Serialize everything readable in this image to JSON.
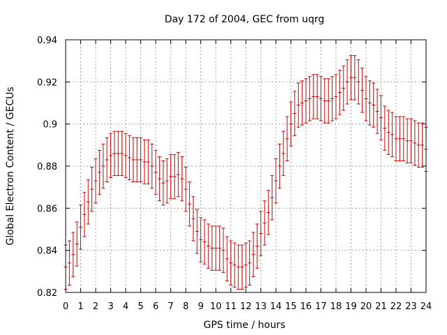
{
  "chart_data": {
    "type": "errorbar",
    "title": "Day 172 of 2004, GEC from uqrg",
    "xlabel": "GPS time / hours",
    "ylabel": "Global Electron Content / GECUs",
    "xlim": [
      0,
      24
    ],
    "ylim": [
      0.82,
      0.94
    ],
    "x_ticks": [
      0,
      1,
      2,
      3,
      4,
      5,
      6,
      7,
      8,
      9,
      10,
      11,
      12,
      13,
      14,
      15,
      16,
      17,
      18,
      19,
      20,
      21,
      22,
      23,
      24
    ],
    "y_ticks": [
      0.82,
      0.84,
      0.86,
      0.88,
      0.9,
      0.92,
      0.94
    ],
    "x_tick_labels": [
      "0",
      "1",
      "2",
      "3",
      "4",
      "5",
      "6",
      "7",
      "8",
      "9",
      "10",
      "11",
      "12",
      "13",
      "14",
      "15",
      "16",
      "17",
      "18",
      "19",
      "20",
      "21",
      "22",
      "23",
      "24"
    ],
    "y_tick_labels": [
      "0.82",
      "0.84",
      "0.86",
      "0.88",
      "0.9",
      "0.92",
      "0.94"
    ],
    "grid": true,
    "series_color": "#cc0000",
    "error": 0.0105,
    "x": [
      0,
      0.25,
      0.5,
      0.75,
      1,
      1.25,
      1.5,
      1.75,
      2,
      2.25,
      2.5,
      2.75,
      3,
      3.25,
      3.5,
      3.75,
      4,
      4.25,
      4.5,
      4.75,
      5,
      5.25,
      5.5,
      5.75,
      6,
      6.25,
      6.5,
      6.75,
      7,
      7.25,
      7.5,
      7.75,
      8,
      8.25,
      8.5,
      8.75,
      9,
      9.25,
      9.5,
      9.75,
      10,
      10.25,
      10.5,
      10.75,
      11,
      11.25,
      11.5,
      11.75,
      12,
      12.25,
      12.5,
      12.75,
      13,
      13.25,
      13.5,
      13.75,
      14,
      14.25,
      14.5,
      14.75,
      15,
      15.25,
      15.5,
      15.75,
      16,
      16.25,
      16.5,
      16.75,
      17,
      17.25,
      17.5,
      17.75,
      18,
      18.25,
      18.5,
      18.75,
      19,
      19.25,
      19.5,
      19.75,
      20,
      20.25,
      20.5,
      20.75,
      21,
      21.25,
      21.5,
      21.75,
      22,
      22.25,
      22.5,
      22.75,
      23,
      23.25,
      23.5,
      23.75,
      24
    ],
    "y": [
      0.832,
      0.834,
      0.838,
      0.843,
      0.851,
      0.857,
      0.863,
      0.869,
      0.873,
      0.877,
      0.88,
      0.883,
      0.885,
      0.886,
      0.886,
      0.886,
      0.885,
      0.884,
      0.883,
      0.883,
      0.883,
      0.882,
      0.882,
      0.88,
      0.877,
      0.874,
      0.872,
      0.873,
      0.875,
      0.875,
      0.876,
      0.874,
      0.869,
      0.862,
      0.855,
      0.849,
      0.845,
      0.844,
      0.842,
      0.841,
      0.841,
      0.841,
      0.84,
      0.836,
      0.834,
      0.833,
      0.832,
      0.832,
      0.833,
      0.834,
      0.838,
      0.842,
      0.848,
      0.853,
      0.858,
      0.865,
      0.873,
      0.88,
      0.886,
      0.893,
      0.9,
      0.905,
      0.909,
      0.91,
      0.911,
      0.912,
      0.913,
      0.913,
      0.912,
      0.911,
      0.911,
      0.912,
      0.913,
      0.915,
      0.917,
      0.92,
      0.922,
      0.922,
      0.92,
      0.916,
      0.912,
      0.91,
      0.909,
      0.906,
      0.903,
      0.898,
      0.896,
      0.895,
      0.893,
      0.893,
      0.893,
      0.892,
      0.892,
      0.891,
      0.89,
      0.89,
      0.888
    ]
  }
}
